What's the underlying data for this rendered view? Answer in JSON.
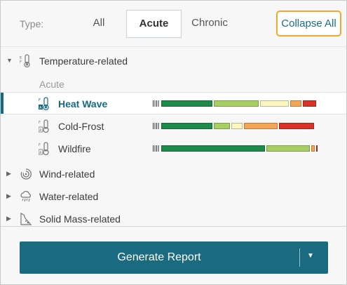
{
  "header": {
    "type_label": "Type:",
    "tabs": [
      {
        "label": "All",
        "selected": false
      },
      {
        "label": "Acute",
        "selected": true
      },
      {
        "label": "Chronic",
        "selected": false
      }
    ],
    "collapse_label": "Collapse All"
  },
  "tree": {
    "categories": [
      {
        "label": "Temperature-related",
        "expanded": true,
        "icon": "thermometer-icon"
      },
      {
        "label": "Wind-related",
        "expanded": false,
        "icon": "wind-icon"
      },
      {
        "label": "Water-related",
        "expanded": false,
        "icon": "rain-cloud-icon"
      },
      {
        "label": "Solid Mass-related",
        "expanded": false,
        "icon": "landslide-icon"
      }
    ],
    "subgroup_label": "Acute",
    "hazards": [
      {
        "label": "Heat Wave",
        "selected": true,
        "segments": [
          {
            "fraction": 0.33,
            "color": "#1e8b4b"
          },
          {
            "fraction": 0.29,
            "color": "#a6cf63"
          },
          {
            "fraction": 0.19,
            "color": "#fbf6c0"
          },
          {
            "fraction": 0.08,
            "color": "#f3a455"
          },
          {
            "fraction": 0.09,
            "color": "#d93328"
          }
        ]
      },
      {
        "label": "Cold-Frost",
        "selected": false,
        "segments": [
          {
            "fraction": 0.33,
            "color": "#1e8b4b"
          },
          {
            "fraction": 0.11,
            "color": "#a6cf63"
          },
          {
            "fraction": 0.08,
            "color": "#fbf6c0"
          },
          {
            "fraction": 0.22,
            "color": "#f3a455"
          },
          {
            "fraction": 0.23,
            "color": "#d93328"
          }
        ]
      },
      {
        "label": "Wildfire",
        "selected": false,
        "segments": [
          {
            "fraction": 0.66,
            "color": "#1e8b4b"
          },
          {
            "fraction": 0.28,
            "color": "#a6cf63"
          },
          {
            "fraction": 0.03,
            "color": "#f3a455"
          },
          {
            "fraction": 0.01,
            "color": "#d93328"
          }
        ]
      }
    ]
  },
  "footer": {
    "generate_label": "Generate Report"
  },
  "colors": {
    "accent": "#1a6a80",
    "highlight_border": "#f0a92e"
  }
}
